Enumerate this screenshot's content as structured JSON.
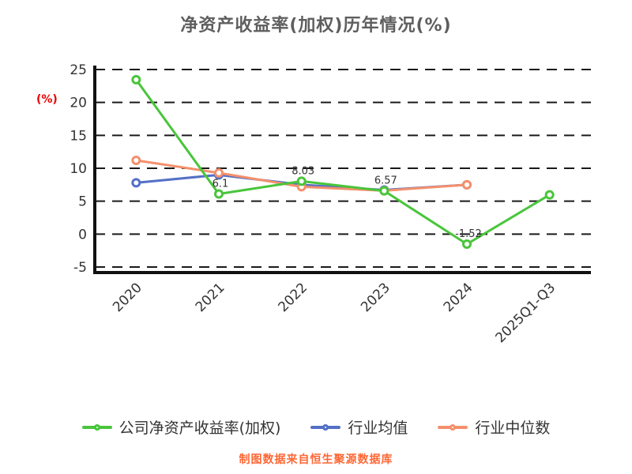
{
  "title": "净资产收益率(加权)历年情况(%)",
  "footer_note": "制图数据来自恒生聚源数据库",
  "colors": {
    "title": "#5e5e5e",
    "footer": "#ff6633",
    "ylabel": "#ee0000",
    "axis": "#111111",
    "grid": "#1a1a1a",
    "tick_text": "#333333",
    "data_label": "#333333"
  },
  "chart_data": {
    "type": "line",
    "title": "净资产收益率(加权)历年情况(%)",
    "ylabel": "(%)",
    "xlabel": "",
    "categories": [
      "2020",
      "2021",
      "2022",
      "2023",
      "2024",
      "2025Q1-Q3"
    ],
    "yticks": [
      25,
      20,
      15,
      10,
      5,
      0,
      -5
    ],
    "ylim": [
      -5,
      25
    ],
    "grid": "horizontal-dashed",
    "legend_position": "bottom",
    "series": [
      {
        "name": "公司净资产收益率(加权)",
        "color": "#49c53b",
        "values": [
          23.46,
          6.1,
          8.03,
          6.57,
          -1.52,
          5.97
        ],
        "point_labels": [
          "",
          "6.1",
          "8.03",
          "6.57",
          "-1.52",
          ""
        ]
      },
      {
        "name": "行业均值",
        "color": "#5470c6",
        "values": [
          7.8,
          9.0,
          7.5,
          6.7,
          7.5,
          null
        ],
        "point_labels": []
      },
      {
        "name": "行业中位数",
        "color": "#f4906c",
        "values": [
          11.2,
          9.3,
          7.2,
          6.6,
          7.5,
          null
        ],
        "point_labels": []
      }
    ]
  }
}
